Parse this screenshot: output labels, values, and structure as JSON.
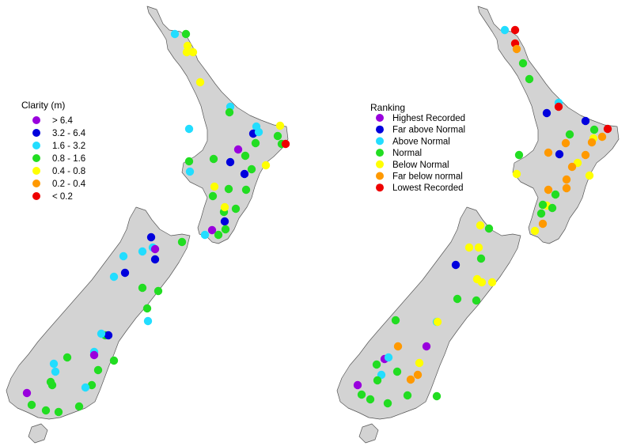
{
  "colors": {
    "land": "#d3d3d3",
    "coast": "#555555",
    "purple": "#9900dd",
    "blue": "#0000dd",
    "cyan": "#22ddff",
    "green": "#22dd22",
    "yellow": "#ffff00",
    "orange": "#ff9900",
    "red": "#ee0000"
  },
  "clarity_map": {
    "legend": {
      "title": "Clarity (m)",
      "items": [
        {
          "label": "> 6.4",
          "color": "purple"
        },
        {
          "label": "3.2 - 6.4",
          "color": "blue"
        },
        {
          "label": "1.6 - 3.2",
          "color": "cyan"
        },
        {
          "label": "0.8 - 1.6",
          "color": "green"
        },
        {
          "label": "0.4 - 0.8",
          "color": "yellow"
        },
        {
          "label": "0.2 - 0.4",
          "color": "orange"
        },
        {
          "label": "< 0.2",
          "color": "red"
        }
      ]
    },
    "site_colors": [
      "cyan",
      "green",
      "yellow",
      "yellow",
      "yellow",
      "yellow",
      "cyan",
      "cyan",
      "green",
      "cyan",
      "blue",
      "cyan",
      "green",
      "yellow",
      "green",
      "green",
      "red",
      "purple",
      "green",
      "blue",
      "green",
      "yellow",
      "green",
      "cyan",
      "blue",
      "green",
      "green",
      "yellow",
      "green",
      "green",
      "green",
      "blue",
      "green",
      "green",
      "yellow",
      "purple",
      "cyan",
      "green",
      "blue",
      "cyan",
      "cyan",
      "cyan",
      "purple",
      "green",
      "blue",
      "cyan",
      "blue",
      "green",
      "green",
      "green",
      "cyan",
      "green",
      "blue",
      "cyan",
      "green",
      "cyan",
      "purple",
      "green",
      "green",
      "cyan",
      "green",
      "cyan",
      "green",
      "green",
      "purple",
      "green",
      "cyan",
      "green",
      "green",
      "green"
    ]
  },
  "ranking_map": {
    "legend": {
      "title": "Ranking",
      "items": [
        {
          "label": "Highest Recorded",
          "color": "purple"
        },
        {
          "label": "Far above Normal",
          "color": "blue"
        },
        {
          "label": "Above Normal",
          "color": "cyan"
        },
        {
          "label": "Normal",
          "color": "green"
        },
        {
          "label": "Below Normal",
          "color": "yellow"
        },
        {
          "label": "Far below normal",
          "color": "orange"
        },
        {
          "label": "Lowest Recorded",
          "color": "red"
        }
      ]
    },
    "site_colors": [
      "red",
      "cyan",
      "yellow",
      "red",
      "orange",
      "green",
      "green",
      "cyan",
      "red",
      "blue",
      "blue",
      "green",
      "red",
      "orange",
      "green",
      "orange",
      "yellow",
      "orange",
      "blue",
      "orange",
      "yellow",
      "yellow",
      "orange",
      "orange",
      "orange",
      "yellow",
      "green",
      "orange",
      "orange",
      "yellow",
      "green",
      "orange",
      "green",
      "yellow",
      "green",
      "green",
      "yellow",
      "green",
      "yellow",
      "yellow",
      "blue",
      "green",
      "yellow",
      "yellow",
      "yellow",
      "green",
      "green",
      "green",
      "cyan",
      "yellow",
      "orange",
      "purple",
      "cyan",
      "purple",
      "yellow",
      "green",
      "orange",
      "green",
      "purple",
      "cyan",
      "green",
      "orange",
      "green",
      "green",
      "green",
      "green",
      "green"
    ]
  }
}
